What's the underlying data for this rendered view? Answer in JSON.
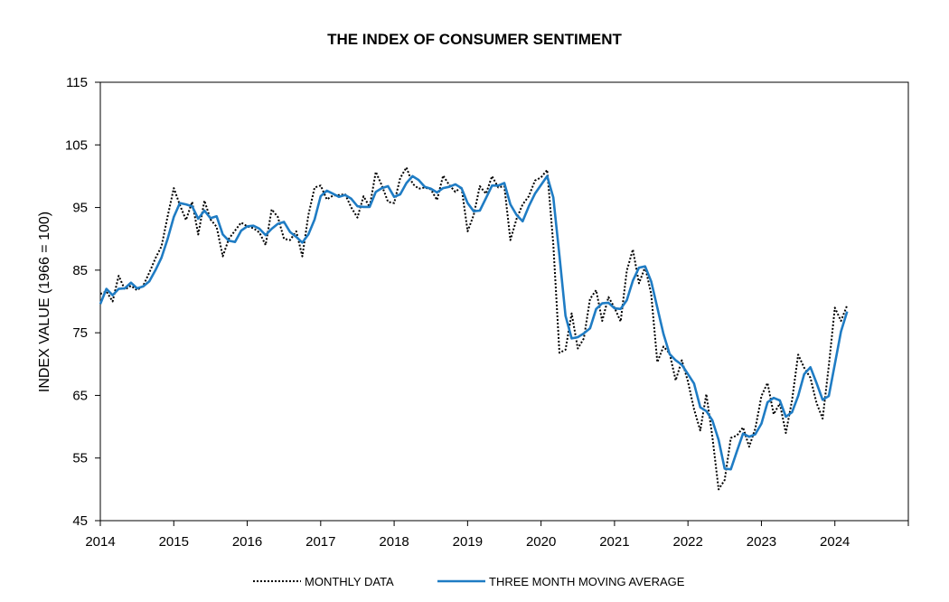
{
  "chart_data": {
    "type": "line",
    "title": "THE INDEX OF CONSUMER SENTIMENT",
    "ylabel": "INDEX VALUE (1966 = 100)",
    "xlabel": "",
    "ylim": [
      45,
      115
    ],
    "yticks": [
      45,
      55,
      65,
      75,
      85,
      95,
      105,
      115
    ],
    "xlim": [
      2014,
      2025
    ],
    "xticks": [
      2014,
      2015,
      2016,
      2017,
      2018,
      2019,
      2020,
      2021,
      2022,
      2023,
      2024
    ],
    "grid": false,
    "legend": "bottom",
    "series": [
      {
        "name": "MONTHLY DATA",
        "style": "dotted",
        "color": "#000000",
        "points": [
          [
            2014.0,
            81.2
          ],
          [
            2014.083,
            81.6
          ],
          [
            2014.167,
            80.0
          ],
          [
            2014.25,
            84.1
          ],
          [
            2014.333,
            81.9
          ],
          [
            2014.417,
            82.5
          ],
          [
            2014.5,
            81.8
          ],
          [
            2014.583,
            82.5
          ],
          [
            2014.667,
            84.6
          ],
          [
            2014.75,
            86.9
          ],
          [
            2014.833,
            88.8
          ],
          [
            2014.917,
            93.6
          ],
          [
            2015.0,
            98.1
          ],
          [
            2015.083,
            95.4
          ],
          [
            2015.167,
            93.0
          ],
          [
            2015.25,
            95.9
          ],
          [
            2015.333,
            90.7
          ],
          [
            2015.417,
            96.1
          ],
          [
            2015.5,
            93.1
          ],
          [
            2015.583,
            91.9
          ],
          [
            2015.667,
            87.2
          ],
          [
            2015.75,
            90.0
          ],
          [
            2015.833,
            91.3
          ],
          [
            2015.917,
            92.6
          ],
          [
            2016.0,
            92.0
          ],
          [
            2016.083,
            91.7
          ],
          [
            2016.167,
            91.0
          ],
          [
            2016.25,
            89.0
          ],
          [
            2016.333,
            94.7
          ],
          [
            2016.417,
            93.5
          ],
          [
            2016.5,
            90.0
          ],
          [
            2016.583,
            89.8
          ],
          [
            2016.667,
            91.2
          ],
          [
            2016.75,
            87.2
          ],
          [
            2016.833,
            93.8
          ],
          [
            2016.917,
            98.2
          ],
          [
            2017.0,
            98.5
          ],
          [
            2017.083,
            96.3
          ],
          [
            2017.167,
            96.9
          ],
          [
            2017.25,
            97.0
          ],
          [
            2017.333,
            97.1
          ],
          [
            2017.417,
            95.0
          ],
          [
            2017.5,
            93.4
          ],
          [
            2017.583,
            96.8
          ],
          [
            2017.667,
            95.1
          ],
          [
            2017.75,
            100.7
          ],
          [
            2017.833,
            98.5
          ],
          [
            2017.917,
            95.9
          ],
          [
            2018.0,
            95.7
          ],
          [
            2018.083,
            99.7
          ],
          [
            2018.167,
            101.4
          ],
          [
            2018.25,
            98.8
          ],
          [
            2018.333,
            98.0
          ],
          [
            2018.417,
            98.2
          ],
          [
            2018.5,
            97.9
          ],
          [
            2018.583,
            96.2
          ],
          [
            2018.667,
            100.1
          ],
          [
            2018.75,
            98.6
          ],
          [
            2018.833,
            97.5
          ],
          [
            2018.917,
            98.3
          ],
          [
            2019.0,
            91.2
          ],
          [
            2019.083,
            93.8
          ],
          [
            2019.167,
            98.4
          ],
          [
            2019.25,
            97.2
          ],
          [
            2019.333,
            100.0
          ],
          [
            2019.417,
            98.2
          ],
          [
            2019.5,
            98.4
          ],
          [
            2019.583,
            89.8
          ],
          [
            2019.667,
            93.2
          ],
          [
            2019.75,
            95.5
          ],
          [
            2019.833,
            96.8
          ],
          [
            2019.917,
            99.3
          ],
          [
            2020.0,
            99.8
          ],
          [
            2020.083,
            101.0
          ],
          [
            2020.167,
            89.1
          ],
          [
            2020.25,
            71.8
          ],
          [
            2020.333,
            72.3
          ],
          [
            2020.417,
            78.1
          ],
          [
            2020.5,
            72.5
          ],
          [
            2020.583,
            74.1
          ],
          [
            2020.667,
            80.4
          ],
          [
            2020.75,
            81.8
          ],
          [
            2020.833,
            76.9
          ],
          [
            2020.917,
            80.7
          ],
          [
            2021.0,
            79.0
          ],
          [
            2021.083,
            76.8
          ],
          [
            2021.167,
            84.9
          ],
          [
            2021.25,
            88.3
          ],
          [
            2021.333,
            82.9
          ],
          [
            2021.417,
            85.5
          ],
          [
            2021.5,
            81.2
          ],
          [
            2021.583,
            70.3
          ],
          [
            2021.667,
            72.8
          ],
          [
            2021.75,
            71.7
          ],
          [
            2021.833,
            67.4
          ],
          [
            2021.917,
            70.6
          ],
          [
            2022.0,
            67.2
          ],
          [
            2022.083,
            62.8
          ],
          [
            2022.167,
            59.4
          ],
          [
            2022.25,
            65.2
          ],
          [
            2022.333,
            58.4
          ],
          [
            2022.417,
            50.0
          ],
          [
            2022.5,
            51.5
          ],
          [
            2022.583,
            58.2
          ],
          [
            2022.667,
            58.6
          ],
          [
            2022.75,
            59.9
          ],
          [
            2022.833,
            56.8
          ],
          [
            2022.917,
            59.7
          ],
          [
            2023.0,
            64.9
          ],
          [
            2023.083,
            67.0
          ],
          [
            2023.167,
            62.0
          ],
          [
            2023.25,
            63.7
          ],
          [
            2023.333,
            59.0
          ],
          [
            2023.417,
            64.2
          ],
          [
            2023.5,
            71.5
          ],
          [
            2023.583,
            69.4
          ],
          [
            2023.667,
            67.8
          ],
          [
            2023.75,
            63.8
          ],
          [
            2023.833,
            61.3
          ],
          [
            2023.917,
            69.7
          ],
          [
            2024.0,
            79.0
          ],
          [
            2024.083,
            76.9
          ],
          [
            2024.167,
            79.4
          ]
        ]
      },
      {
        "name": "THREE MONTH MOVING AVERAGE",
        "style": "solid",
        "color": "#1f7cc4",
        "points": [
          [
            2014.0,
            79.6
          ],
          [
            2014.083,
            82.0
          ],
          [
            2014.167,
            81.0
          ],
          [
            2014.25,
            82.0
          ],
          [
            2014.333,
            82.1
          ],
          [
            2014.417,
            83.0
          ],
          [
            2014.5,
            82.1
          ],
          [
            2014.583,
            82.4
          ],
          [
            2014.667,
            83.2
          ],
          [
            2014.75,
            85.0
          ],
          [
            2014.833,
            87.0
          ],
          [
            2014.917,
            90.0
          ],
          [
            2015.0,
            93.5
          ],
          [
            2015.083,
            95.7
          ],
          [
            2015.167,
            95.5
          ],
          [
            2015.25,
            95.2
          ],
          [
            2015.333,
            93.2
          ],
          [
            2015.417,
            94.5
          ],
          [
            2015.5,
            93.3
          ],
          [
            2015.583,
            93.6
          ],
          [
            2015.667,
            90.7
          ],
          [
            2015.75,
            89.7
          ],
          [
            2015.833,
            89.5
          ],
          [
            2015.917,
            91.3
          ],
          [
            2016.0,
            92.0
          ],
          [
            2016.083,
            92.1
          ],
          [
            2016.167,
            91.6
          ],
          [
            2016.25,
            90.6
          ],
          [
            2016.333,
            91.6
          ],
          [
            2016.417,
            92.4
          ],
          [
            2016.5,
            92.7
          ],
          [
            2016.583,
            91.1
          ],
          [
            2016.667,
            90.3
          ],
          [
            2016.75,
            89.4
          ],
          [
            2016.833,
            90.7
          ],
          [
            2016.917,
            93.1
          ],
          [
            2017.0,
            96.8
          ],
          [
            2017.083,
            97.7
          ],
          [
            2017.167,
            97.2
          ],
          [
            2017.25,
            96.7
          ],
          [
            2017.333,
            97.0
          ],
          [
            2017.417,
            96.4
          ],
          [
            2017.5,
            95.2
          ],
          [
            2017.583,
            95.1
          ],
          [
            2017.667,
            95.1
          ],
          [
            2017.75,
            97.5
          ],
          [
            2017.833,
            98.1
          ],
          [
            2017.917,
            98.4
          ],
          [
            2018.0,
            96.7
          ],
          [
            2018.083,
            97.1
          ],
          [
            2018.167,
            98.9
          ],
          [
            2018.25,
            100.0
          ],
          [
            2018.333,
            99.4
          ],
          [
            2018.417,
            98.3
          ],
          [
            2018.5,
            98.0
          ],
          [
            2018.583,
            97.4
          ],
          [
            2018.667,
            98.1
          ],
          [
            2018.75,
            98.3
          ],
          [
            2018.833,
            98.7
          ],
          [
            2018.917,
            98.1
          ],
          [
            2019.0,
            95.7
          ],
          [
            2019.083,
            94.4
          ],
          [
            2019.167,
            94.5
          ],
          [
            2019.25,
            96.5
          ],
          [
            2019.333,
            98.5
          ],
          [
            2019.417,
            98.5
          ],
          [
            2019.5,
            98.9
          ],
          [
            2019.583,
            95.5
          ],
          [
            2019.667,
            93.8
          ],
          [
            2019.75,
            92.8
          ],
          [
            2019.833,
            95.2
          ],
          [
            2019.917,
            97.2
          ],
          [
            2020.0,
            98.6
          ],
          [
            2020.083,
            100.0
          ],
          [
            2020.167,
            96.6
          ],
          [
            2020.25,
            87.3
          ],
          [
            2020.333,
            77.7
          ],
          [
            2020.417,
            74.1
          ],
          [
            2020.5,
            74.3
          ],
          [
            2020.583,
            74.9
          ],
          [
            2020.667,
            75.7
          ],
          [
            2020.75,
            78.8
          ],
          [
            2020.833,
            79.7
          ],
          [
            2020.917,
            79.8
          ],
          [
            2021.0,
            78.9
          ],
          [
            2021.083,
            78.8
          ],
          [
            2021.167,
            80.2
          ],
          [
            2021.25,
            83.3
          ],
          [
            2021.333,
            85.4
          ],
          [
            2021.417,
            85.6
          ],
          [
            2021.5,
            83.2
          ],
          [
            2021.583,
            79.0
          ],
          [
            2021.667,
            74.8
          ],
          [
            2021.75,
            71.6
          ],
          [
            2021.833,
            70.6
          ],
          [
            2021.917,
            69.9
          ],
          [
            2022.0,
            68.4
          ],
          [
            2022.083,
            66.9
          ],
          [
            2022.167,
            63.1
          ],
          [
            2022.25,
            62.5
          ],
          [
            2022.333,
            61.0
          ],
          [
            2022.417,
            57.9
          ],
          [
            2022.5,
            53.3
          ],
          [
            2022.583,
            53.2
          ],
          [
            2022.667,
            56.1
          ],
          [
            2022.75,
            58.9
          ],
          [
            2022.833,
            58.4
          ],
          [
            2022.917,
            58.8
          ],
          [
            2023.0,
            60.5
          ],
          [
            2023.083,
            63.9
          ],
          [
            2023.167,
            64.6
          ],
          [
            2023.25,
            64.2
          ],
          [
            2023.333,
            61.6
          ],
          [
            2023.417,
            62.3
          ],
          [
            2023.5,
            64.9
          ],
          [
            2023.583,
            68.4
          ],
          [
            2023.667,
            69.5
          ],
          [
            2023.75,
            67.0
          ],
          [
            2023.833,
            64.3
          ],
          [
            2023.917,
            64.9
          ],
          [
            2024.0,
            70.0
          ],
          [
            2024.083,
            75.2
          ],
          [
            2024.167,
            78.4
          ]
        ]
      }
    ]
  }
}
